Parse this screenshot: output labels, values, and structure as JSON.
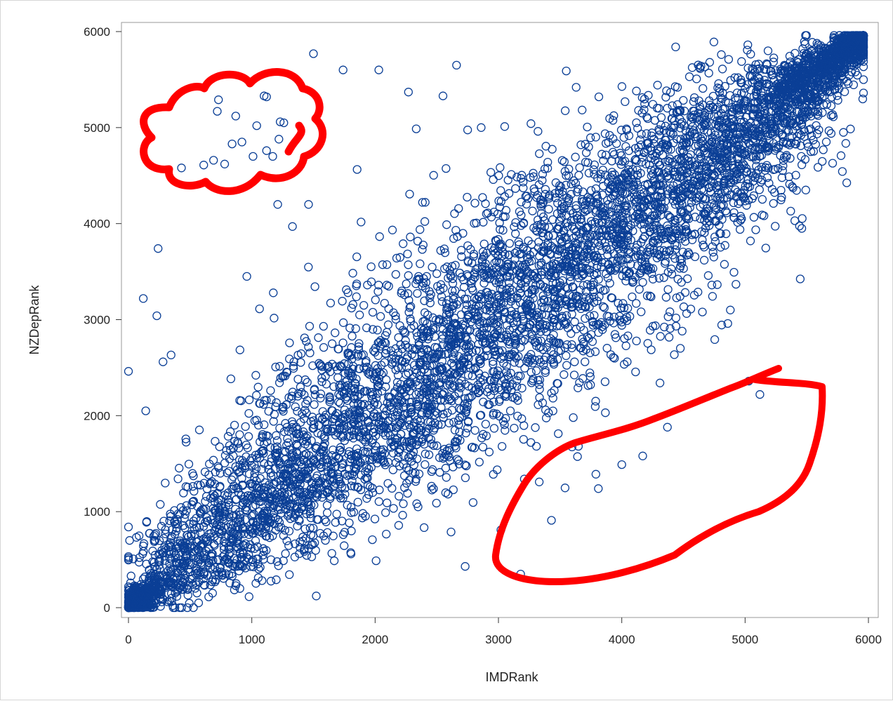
{
  "chart_data": {
    "type": "scatter",
    "title": "",
    "xlabel": "IMDRank",
    "ylabel": "NZDepRank",
    "xlim": [
      0,
      6000
    ],
    "ylim": [
      0,
      6000
    ],
    "x_ticks": [
      "0",
      "1000",
      "2000",
      "3000",
      "4000",
      "5000",
      "6000"
    ],
    "y_ticks": [
      "0",
      "1000",
      "2000",
      "3000",
      "4000",
      "5000",
      "6000"
    ],
    "grid": false,
    "marker": "open-circle",
    "marker_color": "#0b3f96",
    "bulk_distribution": {
      "description_points": "dense band along diagonal y≈x from (0,0) to (5950,5950)",
      "n_points_approx": 6000
    },
    "outliers": [
      {
        "x": 430,
        "y": 4580
      },
      {
        "x": 610,
        "y": 4610
      },
      {
        "x": 690,
        "y": 4660
      },
      {
        "x": 780,
        "y": 4620
      },
      {
        "x": 840,
        "y": 4830
      },
      {
        "x": 920,
        "y": 4850
      },
      {
        "x": 1010,
        "y": 4700
      },
      {
        "x": 1120,
        "y": 4760
      },
      {
        "x": 1170,
        "y": 4700
      },
      {
        "x": 1220,
        "y": 4880
      },
      {
        "x": 1230,
        "y": 5060
      },
      {
        "x": 1260,
        "y": 5050
      },
      {
        "x": 1040,
        "y": 5020
      },
      {
        "x": 870,
        "y": 5120
      },
      {
        "x": 1100,
        "y": 5330
      },
      {
        "x": 1120,
        "y": 5320
      },
      {
        "x": 720,
        "y": 5170
      },
      {
        "x": 730,
        "y": 5290
      },
      {
        "x": 1500,
        "y": 5770
      },
      {
        "x": 1740,
        "y": 5600
      },
      {
        "x": 2030,
        "y": 5600
      },
      {
        "x": 2660,
        "y": 5650
      },
      {
        "x": 2270,
        "y": 5370
      },
      {
        "x": 2550,
        "y": 5330
      },
      {
        "x": 2860,
        "y": 5000
      },
      {
        "x": 3550,
        "y": 5590
      },
      {
        "x": 3630,
        "y": 5420
      },
      {
        "x": 3210,
        "y": 1340
      },
      {
        "x": 3430,
        "y": 910
      },
      {
        "x": 3790,
        "y": 1390
      },
      {
        "x": 3810,
        "y": 1240
      },
      {
        "x": 4000,
        "y": 1490
      },
      {
        "x": 4170,
        "y": 1580
      },
      {
        "x": 4370,
        "y": 1880
      },
      {
        "x": 5120,
        "y": 2220
      },
      {
        "x": 5030,
        "y": 2360
      },
      {
        "x": 3180,
        "y": 350
      },
      {
        "x": 2730,
        "y": 430
      },
      {
        "x": 3020,
        "y": 810
      },
      {
        "x": 4560,
        "y": 3110
      },
      {
        "x": 4880,
        "y": 3100
      },
      {
        "x": 4860,
        "y": 2960
      },
      {
        "x": 4490,
        "y": 2880
      },
      {
        "x": 4230,
        "y": 2890
      },
      {
        "x": 4310,
        "y": 2340
      },
      {
        "x": 4730,
        "y": 3360
      },
      {
        "x": 5460,
        "y": 3950
      },
      {
        "x": 5370,
        "y": 4130
      },
      {
        "x": 120,
        "y": 3220
      },
      {
        "x": 240,
        "y": 3740
      },
      {
        "x": 230,
        "y": 3040
      },
      {
        "x": 280,
        "y": 2560
      },
      {
        "x": 140,
        "y": 2050
      },
      {
        "x": 960,
        "y": 3450
      },
      {
        "x": 1460,
        "y": 4200
      },
      {
        "x": 1330,
        "y": 3970
      },
      {
        "x": 1210,
        "y": 4200
      }
    ]
  },
  "annotations": {
    "cloud_color": "#ff0000",
    "loop_color": "#ff0000"
  }
}
